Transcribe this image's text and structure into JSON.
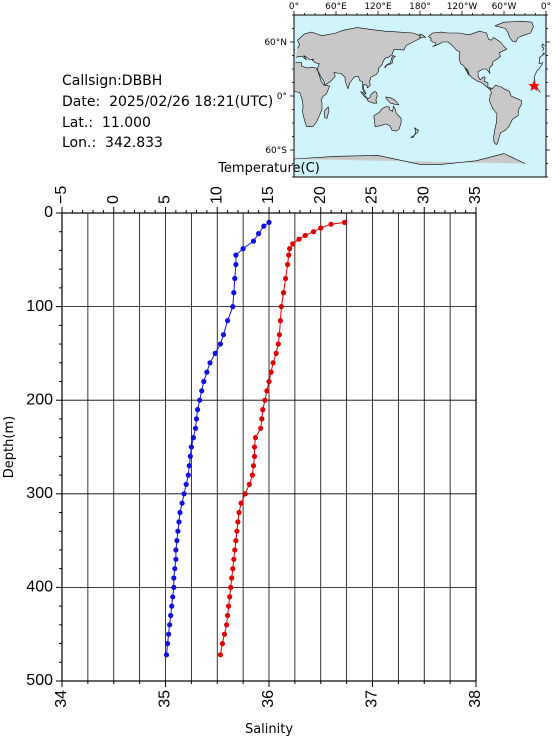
{
  "info": {
    "callsign": "Callsign:DBBH",
    "date": "Date:  2025/02/26 18:21(UTC)",
    "lat": "Lat.:  11.000",
    "lon": "Lon.:  342.833"
  },
  "map": {
    "top_ticks": [
      "0°",
      "60°E",
      "120°E",
      "180°",
      "120°W",
      "60°W",
      "0°"
    ],
    "lat_ticks": [
      "60°N",
      "0°",
      "60°S"
    ],
    "ocean_color": "#d0f4fb",
    "land_color": "#c8c8c8",
    "station_marker": "red-star",
    "station_lon": 342.833,
    "station_lat": 11.0
  },
  "chart_data": {
    "type": "line",
    "ylabel": "Depth(m)",
    "ylim": [
      500,
      0
    ],
    "yticks": [
      "0",
      "100",
      "200",
      "300",
      "400",
      "500"
    ],
    "grid": true,
    "top_axis": {
      "label": "Temperature(C)",
      "range": [
        -5,
        35
      ],
      "ticks": [
        "−5",
        "0",
        "5",
        "10",
        "15",
        "20",
        "25",
        "30",
        "35"
      ]
    },
    "bottom_axis": {
      "label": "Salinity",
      "range": [
        34,
        38
      ],
      "ticks": [
        "34",
        "35",
        "36",
        "37",
        "38"
      ]
    },
    "series": [
      {
        "axis": "temperature",
        "color": "#dd0000",
        "points": [
          [
            22.3,
            10
          ],
          [
            21.0,
            12
          ],
          [
            20.0,
            16
          ],
          [
            19.3,
            20
          ],
          [
            18.5,
            24
          ],
          [
            17.9,
            28
          ],
          [
            17.3,
            33
          ],
          [
            17.0,
            38
          ],
          [
            16.9,
            45
          ],
          [
            16.8,
            55
          ],
          [
            16.6,
            70
          ],
          [
            16.4,
            85
          ],
          [
            16.2,
            100
          ],
          [
            16.1,
            115
          ],
          [
            16.0,
            130
          ],
          [
            15.9,
            140
          ],
          [
            15.7,
            150
          ],
          [
            15.4,
            160
          ],
          [
            15.2,
            170
          ],
          [
            15.0,
            180
          ],
          [
            14.8,
            190
          ],
          [
            14.6,
            200
          ],
          [
            14.4,
            210
          ],
          [
            14.3,
            220
          ],
          [
            14.2,
            230
          ],
          [
            13.7,
            240
          ],
          [
            13.6,
            250
          ],
          [
            13.6,
            260
          ],
          [
            13.5,
            270
          ],
          [
            13.4,
            280
          ],
          [
            13.1,
            290
          ],
          [
            12.7,
            300
          ],
          [
            12.3,
            310
          ],
          [
            12.1,
            320
          ],
          [
            12.0,
            330
          ],
          [
            11.9,
            340
          ],
          [
            11.8,
            350
          ],
          [
            11.7,
            360
          ],
          [
            11.6,
            370
          ],
          [
            11.5,
            380
          ],
          [
            11.4,
            390
          ],
          [
            11.3,
            400
          ],
          [
            11.2,
            410
          ],
          [
            11.1,
            420
          ],
          [
            11.0,
            430
          ],
          [
            10.9,
            440
          ],
          [
            10.7,
            450
          ],
          [
            10.5,
            460
          ],
          [
            10.3,
            472
          ]
        ]
      },
      {
        "axis": "salinity",
        "color": "#1111dd",
        "points": [
          [
            36.0,
            10
          ],
          [
            35.95,
            14
          ],
          [
            35.9,
            22
          ],
          [
            35.85,
            30
          ],
          [
            35.75,
            38
          ],
          [
            35.68,
            45
          ],
          [
            35.68,
            55
          ],
          [
            35.67,
            70
          ],
          [
            35.66,
            85
          ],
          [
            35.65,
            100
          ],
          [
            35.6,
            115
          ],
          [
            35.56,
            130
          ],
          [
            35.53,
            140
          ],
          [
            35.48,
            150
          ],
          [
            35.43,
            160
          ],
          [
            35.4,
            170
          ],
          [
            35.37,
            180
          ],
          [
            35.35,
            190
          ],
          [
            35.33,
            200
          ],
          [
            35.31,
            210
          ],
          [
            35.3,
            220
          ],
          [
            35.29,
            230
          ],
          [
            35.27,
            240
          ],
          [
            35.25,
            250
          ],
          [
            35.24,
            260
          ],
          [
            35.23,
            270
          ],
          [
            35.22,
            280
          ],
          [
            35.2,
            290
          ],
          [
            35.18,
            300
          ],
          [
            35.16,
            310
          ],
          [
            35.14,
            320
          ],
          [
            35.13,
            330
          ],
          [
            35.12,
            340
          ],
          [
            35.11,
            350
          ],
          [
            35.1,
            360
          ],
          [
            35.1,
            370
          ],
          [
            35.09,
            380
          ],
          [
            35.08,
            390
          ],
          [
            35.08,
            400
          ],
          [
            35.07,
            410
          ],
          [
            35.06,
            420
          ],
          [
            35.05,
            430
          ],
          [
            35.04,
            440
          ],
          [
            35.03,
            450
          ],
          [
            35.02,
            460
          ],
          [
            35.01,
            472
          ]
        ]
      }
    ]
  }
}
